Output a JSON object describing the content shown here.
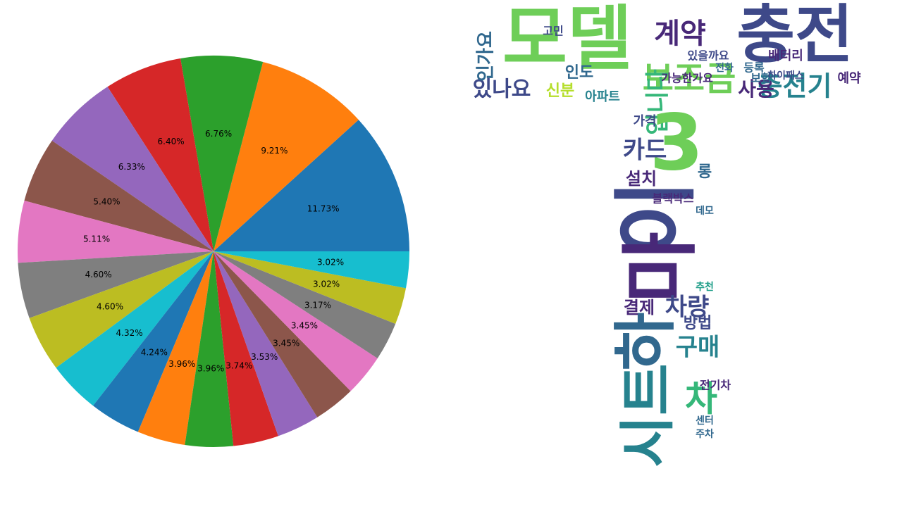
{
  "chart_data": {
    "type": "pie",
    "values": [
      11.73,
      9.21,
      6.76,
      6.4,
      6.33,
      5.4,
      5.11,
      4.6,
      4.6,
      4.32,
      4.24,
      3.96,
      3.96,
      3.74,
      3.53,
      3.45,
      3.45,
      3.17,
      3.02,
      3.02
    ],
    "value_labels": [
      "11.73%",
      "9.21%",
      "6.76%",
      "6.40%",
      "6.33%",
      "5.40%",
      "5.11%",
      "4.60%",
      "4.60%",
      "4.32%",
      "4.24%",
      "3.96%",
      "3.96%",
      "3.74%",
      "3.53%",
      "3.45%",
      "3.45%",
      "3.17%",
      "3.02%",
      "3.02%"
    ],
    "colors": [
      "#1f77b4",
      "#ff7f0e",
      "#2ca02c",
      "#d62728",
      "#9467bd",
      "#8c564b",
      "#e377c2",
      "#7f7f7f",
      "#bcbd22",
      "#17becf",
      "#1f77b4",
      "#ff7f0e",
      "#2ca02c",
      "#d62728",
      "#9467bd",
      "#8c564b",
      "#e377c2",
      "#7f7f7f",
      "#bcbd22",
      "#17becf"
    ]
  },
  "word_cloud": {
    "words": [
      "모델",
      "충전",
      "계약",
      "보조금",
      "충전기",
      "있나요",
      "인가요",
      "입니다",
      "3",
      "카드",
      "이",
      "마",
      "하",
      "시트",
      "차",
      "설치",
      "결제",
      "차량",
      "구매",
      "방법",
      "사용",
      "배터리",
      "가능한가요",
      "전기차",
      "블랙박스",
      "아파트",
      "신분",
      "보험",
      "등록",
      "가격",
      "예약",
      "하이패스",
      "롱",
      "데모",
      "추천",
      "센터",
      "전화",
      "주차",
      "인도",
      "있을까요",
      "고민"
    ]
  }
}
